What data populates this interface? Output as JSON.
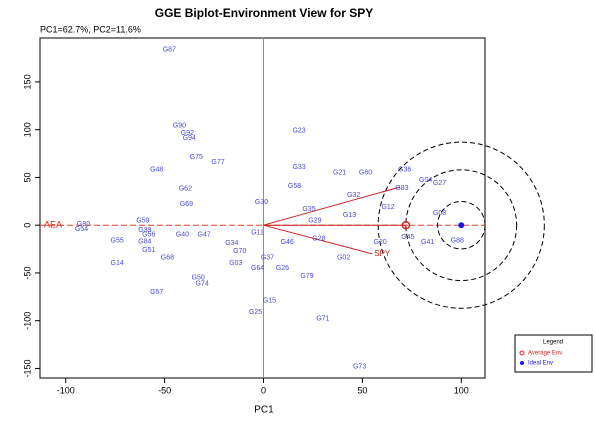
{
  "chart_data": {
    "type": "biplot",
    "title": "GGE Biplot-Environment View for SPY",
    "subtitle": "PC1=62.7%, PC2=11.6%",
    "x_label": "PC1",
    "xlim": [
      -113,
      112
    ],
    "ylim": [
      -160,
      196
    ],
    "xticks": [
      -100,
      -50,
      0,
      50,
      100
    ],
    "yticks": [
      -150,
      -100,
      -50,
      0,
      50,
      100,
      150
    ],
    "genotypes": {
      "color": "#4a4ad8",
      "labels": [
        "G87",
        "G90",
        "G92",
        "G94",
        "G23",
        "G75",
        "G77",
        "G48",
        "G33",
        "G21",
        "G60",
        "G36",
        "G62",
        "G58",
        "G32",
        "G83",
        "G04",
        "G27",
        "G69",
        "G30",
        "G35",
        "G12",
        "G29",
        "G13",
        "G08",
        "G59",
        "G80",
        "G54",
        "G39",
        "G56",
        "G40",
        "G47",
        "G11",
        "G55",
        "G84",
        "G34",
        "G46",
        "G28",
        "G20",
        "G45",
        "G41",
        "G88",
        "G51",
        "G68",
        "G02",
        "G70",
        "G37",
        "G03",
        "G14",
        "G64",
        "G26",
        "G79",
        "G50",
        "G74",
        "G57",
        "G15",
        "G25",
        "G71",
        "G73"
      ],
      "x": [
        -47.6,
        -42.5,
        -38.5,
        -37.5,
        18,
        -34,
        -23,
        -54,
        18,
        38.5,
        51.6,
        71.4,
        -39.5,
        15.7,
        45.6,
        70,
        82,
        89,
        -39,
        -1,
        23,
        63,
        26,
        43.5,
        89,
        -61,
        -91,
        -92,
        -60,
        -58,
        -41,
        -30,
        -3,
        -74,
        -60,
        -16,
        12,
        28,
        59,
        73,
        83,
        98,
        -58,
        -48.6,
        40.5,
        -12,
        2,
        -14,
        -74,
        -3,
        9.6,
        22,
        -33,
        -31,
        -54,
        3,
        -4,
        30,
        48.6
      ],
      "y": [
        184,
        104,
        96.5,
        91,
        99,
        71,
        66,
        58,
        61,
        55,
        55,
        58,
        38,
        41,
        31.5,
        39,
        47,
        44,
        22,
        24,
        17,
        19,
        5,
        10.5,
        12.6,
        5,
        1,
        -4,
        -5,
        -10,
        -10,
        -10,
        -8,
        -16,
        -17,
        -19,
        -18,
        -14,
        -18,
        -12.6,
        -18,
        -16,
        -26,
        -34,
        -34,
        -27,
        -34,
        -40,
        -40,
        -45,
        -45,
        -53.5,
        -55,
        -61,
        -70,
        -79,
        -91,
        -98,
        -148
      ]
    },
    "environments": {
      "color": "#cc2222",
      "labels": [
        null,
        null,
        "SPY"
      ],
      "x": [
        69,
        73,
        55
      ],
      "y": [
        40,
        0,
        -30
      ]
    },
    "aea_label": "AEA",
    "average_env": {
      "name": "Average Env",
      "x": 72,
      "y": 0,
      "color": "#dd2222"
    },
    "ideal_env": {
      "name": "Ideal Env",
      "x": 100,
      "y": 0,
      "color": "#1a1aee"
    },
    "circle_radii": [
      12,
      28,
      42
    ],
    "legend_title": "Legend"
  }
}
